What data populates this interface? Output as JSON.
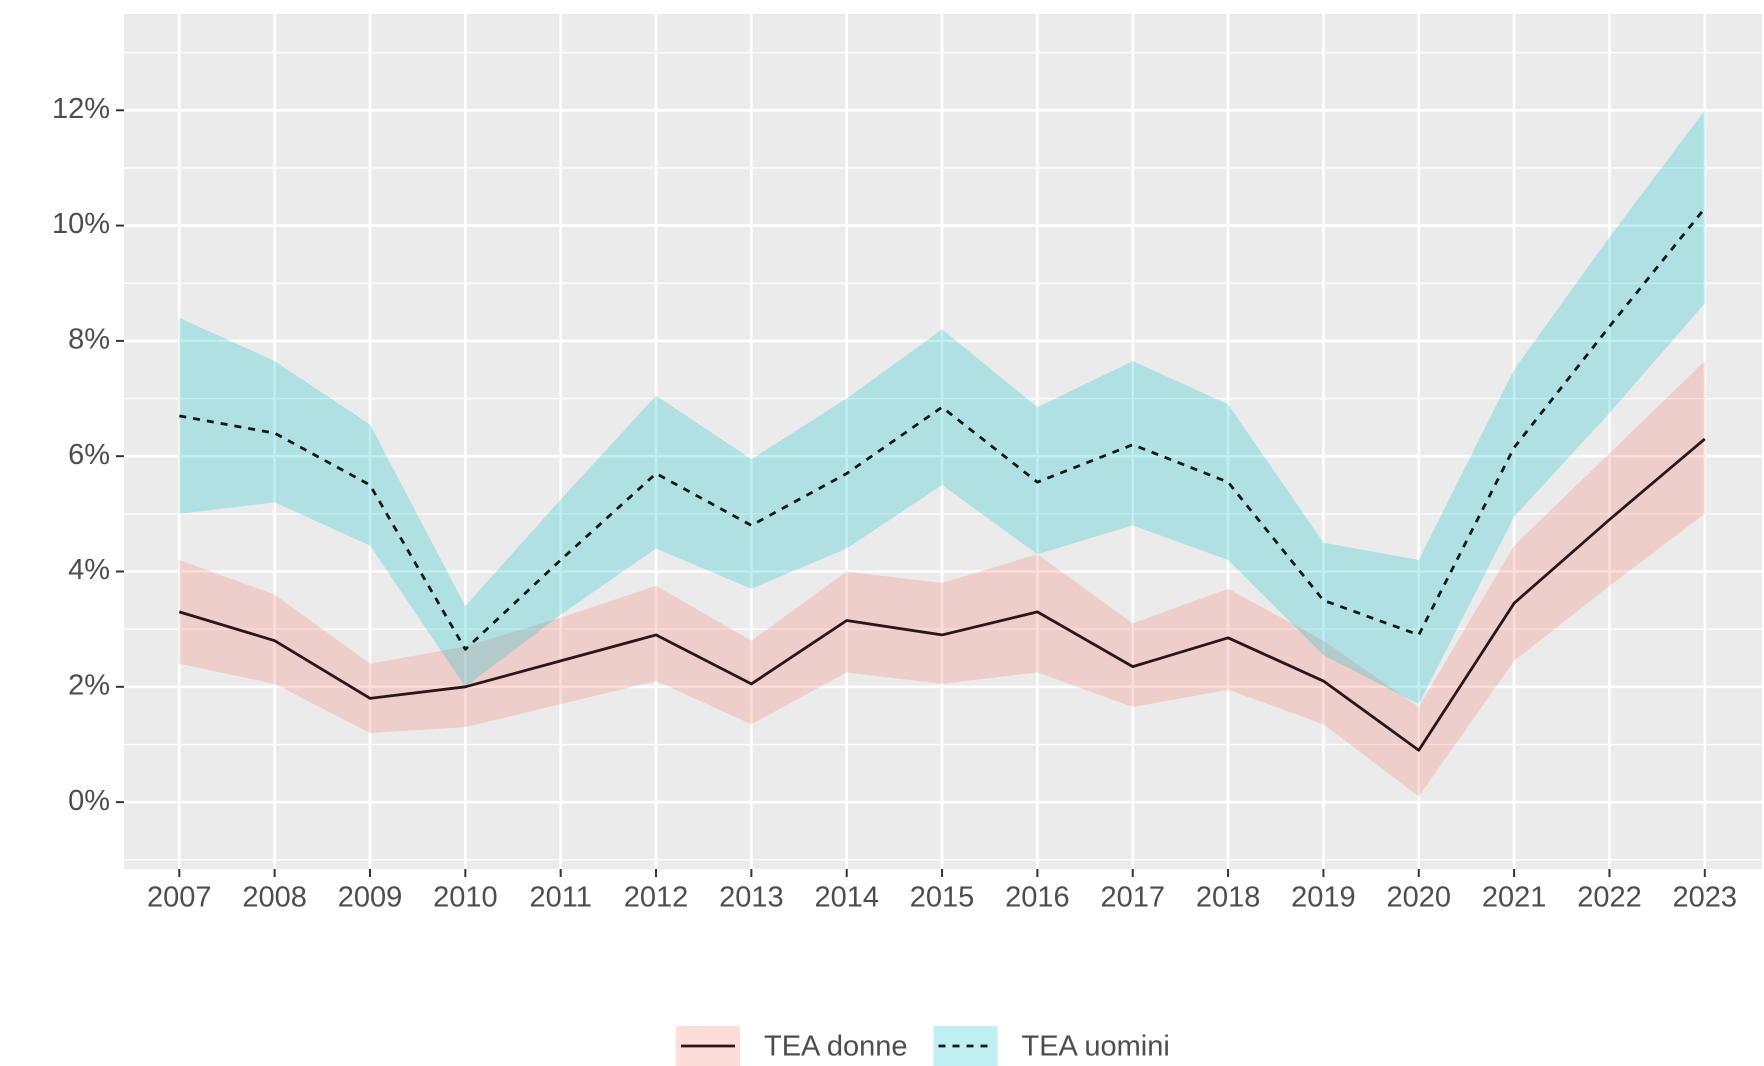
{
  "chart_data": {
    "type": "ribbon-line",
    "x": [
      2007,
      2008,
      2009,
      2010,
      2011,
      2012,
      2013,
      2014,
      2015,
      2016,
      2017,
      2018,
      2019,
      2020,
      2021,
      2022,
      2023
    ],
    "xlim": [
      2006.42,
      2023.6
    ],
    "xticks": [
      2007,
      2008,
      2009,
      2010,
      2011,
      2012,
      2013,
      2014,
      2015,
      2016,
      2017,
      2018,
      2019,
      2020,
      2021,
      2022,
      2023
    ],
    "ylim": [
      -1.16,
      13.67
    ],
    "yticks": [
      {
        "value": 0,
        "label": "0%"
      },
      {
        "value": 2,
        "label": "2%"
      },
      {
        "value": 4,
        "label": "4%"
      },
      {
        "value": 6,
        "label": "6%"
      },
      {
        "value": 8,
        "label": "8%"
      },
      {
        "value": 10,
        "label": "10%"
      },
      {
        "value": 12,
        "label": "12%"
      }
    ],
    "minor_yticks": [
      -1,
      1,
      3,
      5,
      7,
      9,
      11,
      13
    ],
    "grid": true,
    "legend": "bottom",
    "series": [
      {
        "name": "TEA donne",
        "color": "#2b1519",
        "fill": "#F8766D",
        "dash": false,
        "values": [
          3.3,
          2.8,
          1.8,
          2.0,
          2.45,
          2.9,
          2.05,
          3.15,
          2.9,
          3.3,
          2.35,
          2.85,
          2.1,
          0.9,
          3.45,
          4.9,
          6.3
        ],
        "lower": [
          2.4,
          2.05,
          1.2,
          1.3,
          1.7,
          2.1,
          1.35,
          2.25,
          2.05,
          2.25,
          1.65,
          1.95,
          1.35,
          0.1,
          2.45,
          3.75,
          5.0
        ],
        "upper": [
          4.2,
          3.6,
          2.4,
          2.7,
          3.2,
          3.75,
          2.8,
          4.0,
          3.8,
          4.3,
          3.1,
          3.7,
          2.8,
          1.65,
          4.45,
          6.05,
          7.65
        ]
      },
      {
        "name": "TEA uomini",
        "color": "#0d1a1c",
        "fill": "#00BFC4",
        "dash": true,
        "values": [
          6.7,
          6.4,
          5.5,
          2.65,
          4.2,
          5.7,
          4.8,
          5.7,
          6.85,
          5.55,
          6.2,
          5.55,
          3.5,
          2.9,
          6.15,
          8.25,
          10.3
        ],
        "lower": [
          5.0,
          5.2,
          4.45,
          2.0,
          3.25,
          4.4,
          3.7,
          4.4,
          5.5,
          4.3,
          4.8,
          4.2,
          2.55,
          1.7,
          4.95,
          6.75,
          8.65
        ],
        "upper": [
          8.4,
          7.65,
          6.55,
          3.4,
          5.25,
          7.05,
          5.95,
          7.0,
          8.2,
          6.85,
          7.65,
          6.9,
          4.5,
          4.2,
          7.5,
          9.8,
          12.0
        ]
      }
    ]
  }
}
